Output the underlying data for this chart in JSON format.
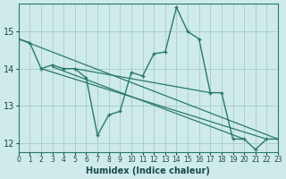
{
  "title": "",
  "xlabel": "Humidex (Indice chaleur)",
  "ylabel": "",
  "bg_color": "#ceeaea",
  "line_color": "#2a7a6a",
  "grid_color": "#aad0d0",
  "series_x": [
    0,
    1,
    2,
    3,
    4,
    5,
    6,
    7,
    8,
    9,
    10,
    11,
    12,
    13,
    14,
    15,
    16,
    17,
    18,
    19,
    20,
    21,
    22,
    23
  ],
  "series_y": [
    14.8,
    14.7,
    14.0,
    14.1,
    14.0,
    14.0,
    13.75,
    12.2,
    12.75,
    12.85,
    13.9,
    13.8,
    14.4,
    14.45,
    15.65,
    15.0,
    14.8,
    13.35,
    13.35,
    12.1,
    12.1,
    11.82,
    12.1,
    12.1
  ],
  "straight_lines": [
    {
      "x1": 0,
      "y1": 14.8,
      "x2": 23,
      "y2": 12.1
    },
    {
      "x1": 2,
      "y1": 14.0,
      "x2": 22,
      "y2": 12.1
    },
    {
      "x1": 3,
      "y1": 14.05,
      "x2": 20,
      "y2": 12.1
    },
    {
      "x1": 5,
      "y1": 14.0,
      "x2": 17,
      "y2": 13.35
    }
  ],
  "xlim": [
    0,
    23
  ],
  "ylim": [
    11.75,
    15.75
  ],
  "yticks": [
    12,
    13,
    14,
    15
  ],
  "xticks": [
    0,
    1,
    2,
    3,
    4,
    5,
    6,
    7,
    8,
    9,
    10,
    11,
    12,
    13,
    14,
    15,
    16,
    17,
    18,
    19,
    20,
    21,
    22,
    23
  ],
  "xtick_labels": [
    "0",
    "1",
    "2",
    "3",
    "4",
    "5",
    "6",
    "7",
    "8",
    "9",
    "10",
    "11",
    "12",
    "13",
    "14",
    "15",
    "16",
    "17",
    "18",
    "19",
    "20",
    "21",
    "22",
    "23"
  ],
  "tick_fontsize": 5.5,
  "xlabel_fontsize": 7
}
